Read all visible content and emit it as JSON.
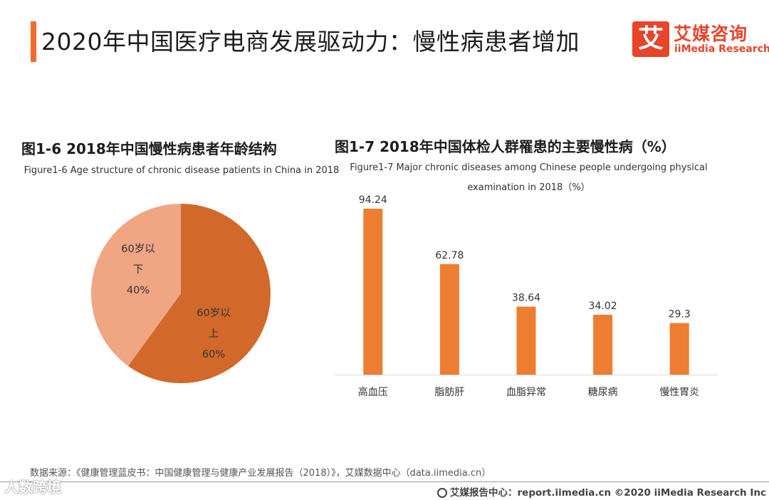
{
  "header": {
    "title": "2020年中国医疗电商发展驱动力：慢性病患者增加",
    "logo_mark": "艾",
    "logo_cn": "艾媒咨询",
    "logo_en": "iiMedia Research"
  },
  "colors": {
    "accent": "#f26b2c",
    "pie_dark": "#d2692a",
    "pie_light": "#f0a583",
    "bar": "#ed7d31"
  },
  "figure_left": {
    "title_cn": "图1-6 2018年中国慢性病患者年龄结构",
    "title_en": "Figure1-6 Age structure of chronic disease patients in China in 2018"
  },
  "figure_right": {
    "title_cn": "图1-7 2018年中国体检人群罹患的主要慢性病（%）",
    "title_en": "Figure1-7 Major chronic diseases among Chinese people undergoing physical examination in 2018（%）"
  },
  "chart_data": [
    {
      "type": "pie",
      "title": "图1-6 2018年中国慢性病患者年龄结构",
      "slices": [
        {
          "label_lines": [
            "60岁以",
            "上"
          ],
          "percent_label": "60%",
          "value": 60
        },
        {
          "label_lines": [
            "60岁以",
            "下"
          ],
          "percent_label": "40%",
          "value": 40
        }
      ]
    },
    {
      "type": "bar",
      "title": "图1-7 2018年中国体检人群罹患的主要慢性病（%）",
      "categories": [
        "高血压",
        "脂肪肝",
        "血脂异常",
        "糖尿病",
        "慢性胃炎"
      ],
      "values": [
        94.24,
        62.78,
        38.64,
        34.02,
        29.3
      ],
      "value_labels": [
        "94.24",
        "62.78",
        "38.64",
        "34.02",
        "29.3"
      ],
      "ylim": [
        0,
        94.24
      ],
      "xlabel": "",
      "ylabel": "",
      "grid": false
    }
  ],
  "footer": {
    "source": "数据来源：《健康管理蓝皮书：中国健康管理与健康产业发展报告（2018）》，艾媒数据中心（data.iimedia.cn）",
    "right_text": "艾媒报告中心：report.iimedia.cn  ©2020  iiMedia Research  Inc",
    "watermark": "人数跨境"
  }
}
